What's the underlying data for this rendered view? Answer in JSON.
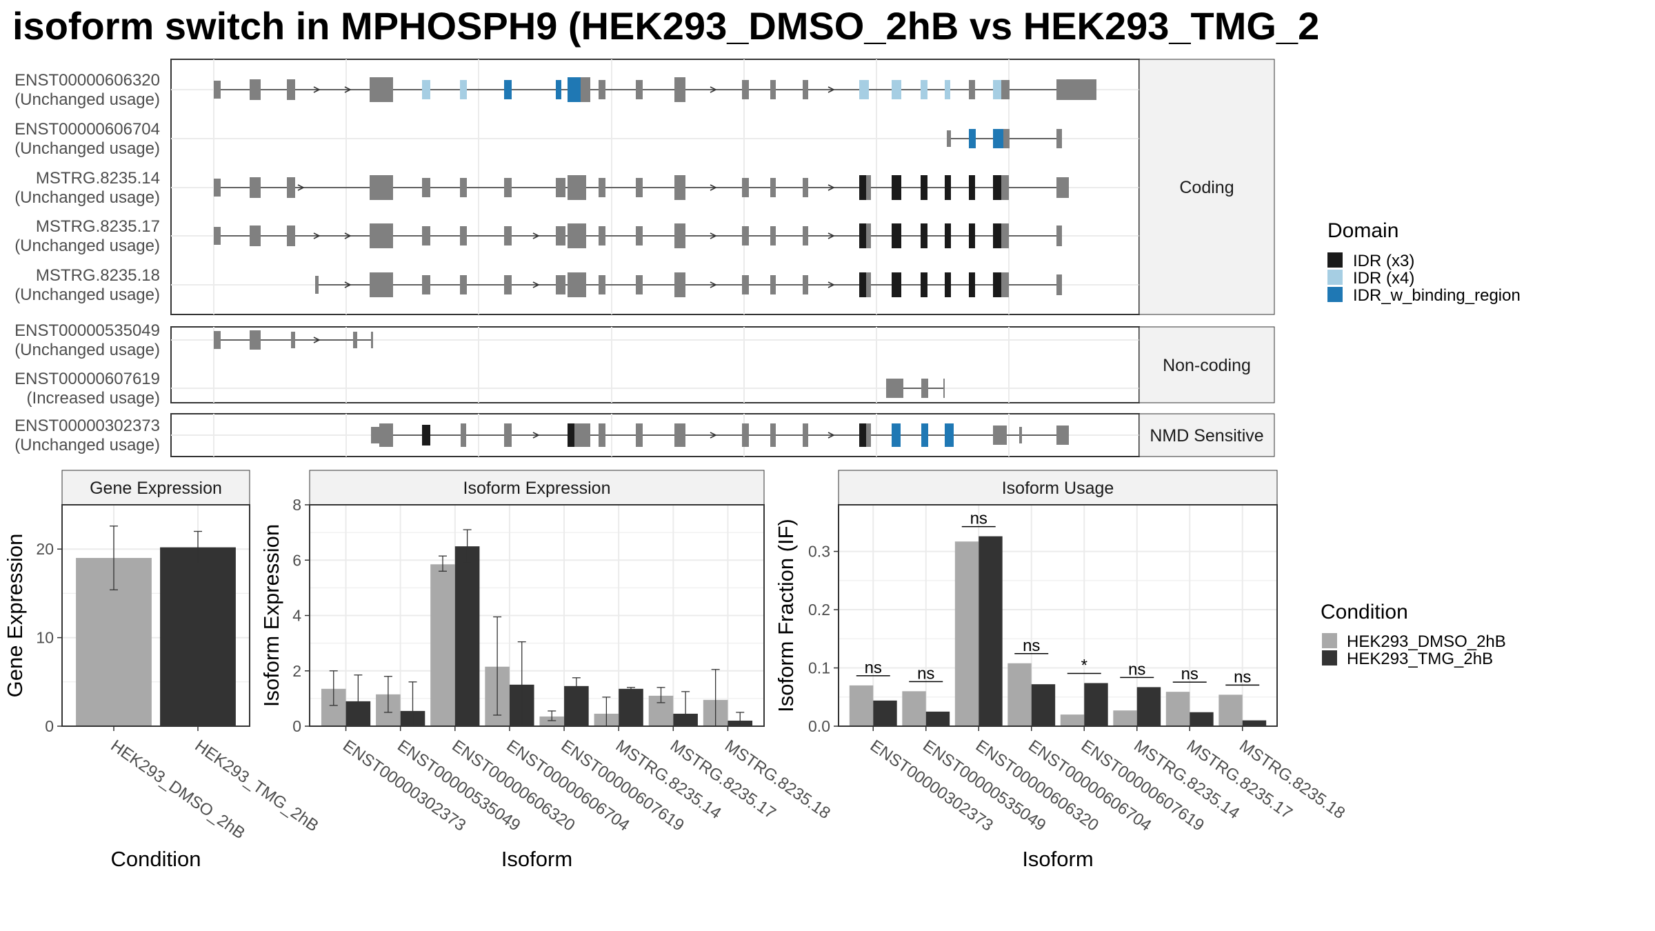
{
  "title": "isoform switch in MPHOSPH9 (HEK293_DMSO_2hB vs HEK293_TMG_2",
  "colors": {
    "dmso": "#a9a9a9",
    "tmg": "#333333",
    "exon": "#808080",
    "idr_x3": "#1a1a1a",
    "idr_x4": "#a6cee3",
    "idr_binding": "#1f78b4",
    "grid": "#ebebeb",
    "strip": "#f2f2f2"
  },
  "structure": {
    "sections": [
      {
        "label": "Coding",
        "transcripts": [
          {
            "id": "ENST00000606320",
            "usage": "(Unchanged usage)"
          },
          {
            "id": "ENST00000606704",
            "usage": "(Unchanged usage)"
          },
          {
            "id": "MSTRG.8235.14",
            "usage": "(Unchanged usage)"
          },
          {
            "id": "MSTRG.8235.17",
            "usage": "(Unchanged usage)"
          },
          {
            "id": "MSTRG.8235.18",
            "usage": "(Unchanged usage)"
          }
        ]
      },
      {
        "label": "Non-coding",
        "transcripts": [
          {
            "id": "ENST00000535049",
            "usage": "(Unchanged usage)"
          },
          {
            "id": "ENST00000607619",
            "usage": "(Increased usage)"
          }
        ]
      },
      {
        "label": "NMD Sensitive",
        "transcripts": [
          {
            "id": "ENST00000302373",
            "usage": "(Unchanged usage)"
          }
        ]
      }
    ],
    "domain_legend": {
      "title": "Domain",
      "entries": [
        {
          "label": "IDR (x3)",
          "color_key": "idr_x3"
        },
        {
          "label": "IDR (x4)",
          "color_key": "idr_x4"
        },
        {
          "label": "IDR_w_binding_region",
          "color_key": "idr_binding"
        }
      ]
    }
  },
  "condition_legend": {
    "title": "Condition",
    "entries": [
      {
        "label": "HEK293_DMSO_2hB",
        "color_key": "dmso"
      },
      {
        "label": "HEK293_TMG_2hB",
        "color_key": "tmg"
      }
    ]
  },
  "chart_data": [
    {
      "type": "bar",
      "title": "Gene Expression",
      "xlabel": "Condition",
      "ylabel": "Gene Expression",
      "ylim": [
        0,
        25
      ],
      "yticks": [
        0,
        10,
        20
      ],
      "categories": [
        "HEK293_DMSO_2hB",
        "HEK293_TMG_2hB"
      ],
      "series": [
        {
          "values": [
            19.0,
            20.2
          ],
          "err_low": [
            15.4,
            18.4
          ],
          "err_high": [
            22.6,
            22.0
          ]
        }
      ]
    },
    {
      "type": "bar",
      "title": "Isoform Expression",
      "xlabel": "Isoform",
      "ylabel": "Isoform Expression",
      "ylim": [
        0,
        8
      ],
      "yticks": [
        0,
        2,
        4,
        6,
        8
      ],
      "categories": [
        "ENST00000302373",
        "ENST00000535049",
        "ENST00000606320",
        "ENST00000606704",
        "ENST00000607619",
        "MSTRG.8235.14",
        "MSTRG.8235.17",
        "MSTRG.8235.18"
      ],
      "series": [
        {
          "name": "HEK293_DMSO_2hB",
          "values": [
            1.35,
            1.15,
            5.85,
            2.15,
            0.35,
            0.45,
            1.1,
            0.95
          ],
          "err_low": [
            0.75,
            0.5,
            5.6,
            0.4,
            0.2,
            0.0,
            0.85,
            0.0
          ],
          "err_high": [
            2.0,
            1.8,
            6.15,
            3.95,
            0.55,
            1.05,
            1.4,
            2.05
          ]
        },
        {
          "name": "HEK293_TMG_2hB",
          "values": [
            0.9,
            0.55,
            6.5,
            1.5,
            1.45,
            1.35,
            0.45,
            0.2
          ],
          "err_low": [
            0.0,
            0.0,
            5.9,
            0.0,
            1.15,
            1.3,
            0.0,
            0.0
          ],
          "err_high": [
            1.85,
            1.6,
            7.1,
            3.05,
            1.75,
            1.4,
            1.25,
            0.5
          ]
        }
      ]
    },
    {
      "type": "bar",
      "title": "Isoform Usage",
      "xlabel": "Isoform",
      "ylabel": "Isoform Fraction (IF)",
      "ylim": [
        0,
        0.38
      ],
      "yticks": [
        0.0,
        0.1,
        0.2,
        0.3
      ],
      "ytick_labels": [
        "0.0",
        "0.1",
        "0.2",
        "0.3"
      ],
      "categories": [
        "ENST00000302373",
        "ENST00000535049",
        "ENST00000606320",
        "ENST00000606704",
        "ENST00000607619",
        "MSTRG.8235.14",
        "MSTRG.8235.17",
        "MSTRG.8235.18"
      ],
      "series": [
        {
          "name": "HEK293_DMSO_2hB",
          "values": [
            0.07,
            0.06,
            0.317,
            0.108,
            0.02,
            0.027,
            0.059,
            0.054
          ]
        },
        {
          "name": "HEK293_TMG_2hB",
          "values": [
            0.044,
            0.025,
            0.326,
            0.072,
            0.074,
            0.067,
            0.024,
            0.01
          ]
        }
      ],
      "annotations": [
        "ns",
        "ns",
        "ns",
        "ns",
        "*",
        "ns",
        "ns",
        "ns"
      ]
    }
  ]
}
